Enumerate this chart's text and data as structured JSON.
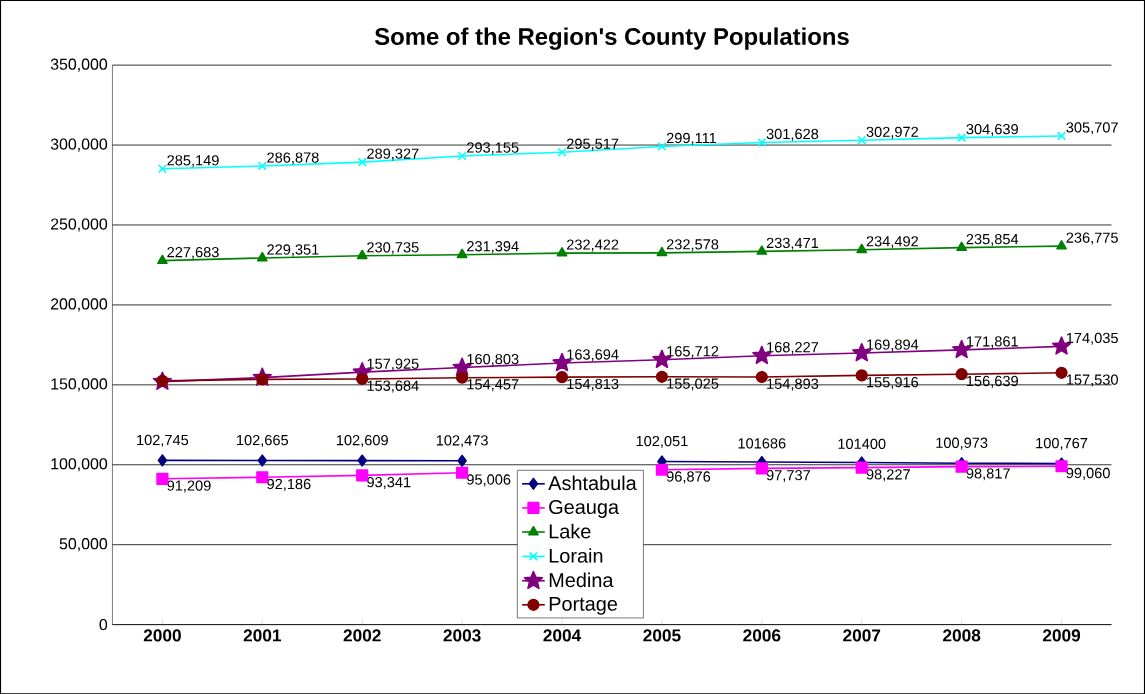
{
  "chart_data": {
    "type": "line",
    "title": "Some of the Region's County Populations",
    "categories": [
      "2000",
      "2001",
      "2002",
      "2003",
      "2004",
      "2005",
      "2006",
      "2007",
      "2008",
      "2009"
    ],
    "ylim": [
      0,
      350000
    ],
    "yticks": [
      {
        "value": 0,
        "label": "0"
      },
      {
        "value": 50000,
        "label": "50,000"
      },
      {
        "value": 100000,
        "label": "100,000"
      },
      {
        "value": 150000,
        "label": "150,000"
      },
      {
        "value": 200000,
        "label": "200,000"
      },
      {
        "value": 250000,
        "label": "250,000"
      },
      {
        "value": 300000,
        "label": "300,000"
      },
      {
        "value": 350000,
        "label": "350,000"
      }
    ],
    "grid": "y",
    "legend": "bottom",
    "line_style": "solid",
    "series": [
      {
        "name": "Ashtabula",
        "color": "#000080",
        "marker": "diamond",
        "values": [
          102745,
          102665,
          102609,
          102473,
          null,
          102051,
          101686,
          101400,
          100973,
          100767
        ],
        "value_labels": [
          "102,745",
          "102,665",
          "102,609",
          "102,473",
          null,
          "102,051",
          "101686",
          "101400",
          "100,973",
          "100,767"
        ]
      },
      {
        "name": "Geauga",
        "color": "#ff00ff",
        "marker": "square",
        "values": [
          91209,
          92186,
          93341,
          95006,
          null,
          96876,
          97737,
          98227,
          98817,
          99060
        ],
        "value_labels": [
          "91,209",
          "92,186",
          "93,341",
          "95,006",
          null,
          "96,876",
          "97,737",
          "98,227",
          "98,817",
          "99,060"
        ]
      },
      {
        "name": "Lake",
        "color": "#008000",
        "marker": "triangle",
        "values": [
          227683,
          229351,
          230735,
          231394,
          232422,
          232578,
          233471,
          234492,
          235854,
          236775
        ],
        "value_labels": [
          "227,683",
          "229,351",
          "230,735",
          "231,394",
          "232,422",
          "232,578",
          "233,471",
          "234,492",
          "235,854",
          "236,775"
        ]
      },
      {
        "name": "Lorain",
        "color": "#00ffff",
        "marker": "cross",
        "values": [
          285149,
          286878,
          289327,
          293155,
          295517,
          299111,
          301628,
          302972,
          304639,
          305707
        ],
        "value_labels": [
          "285,149",
          "286,878",
          "289,327",
          "293,155",
          "295,517",
          "299,111",
          "301,628",
          "302,972",
          "304,639",
          "305,707"
        ]
      },
      {
        "name": "Medina",
        "color": "#800080",
        "marker": "star",
        "values": [
          152000,
          154500,
          157925,
          160803,
          163694,
          165712,
          168227,
          169894,
          171861,
          174035
        ],
        "value_labels": [
          null,
          null,
          "157,925",
          "160,803",
          "163,694",
          "165,712",
          "168,227",
          "169,894",
          "171,861",
          "174,035"
        ]
      },
      {
        "name": "Portage",
        "color": "#800000",
        "marker": "circle",
        "values": [
          152500,
          153400,
          153684,
          154457,
          154813,
          155025,
          154893,
          155916,
          156639,
          157530
        ],
        "value_labels": [
          null,
          null,
          "153,684",
          "154,457",
          "154,813",
          "155,025",
          "154,893",
          "155,916",
          "156,639",
          "157,530"
        ]
      }
    ]
  }
}
